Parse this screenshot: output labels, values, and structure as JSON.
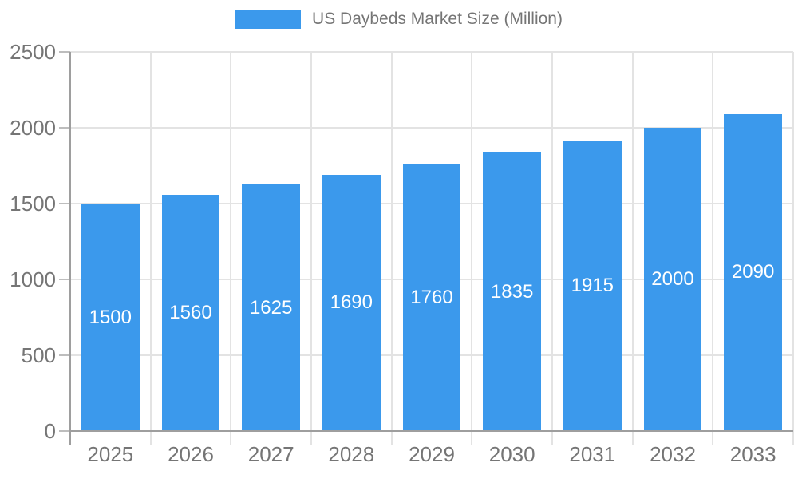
{
  "legend": {
    "label": "US Daybeds Market Size (Million)",
    "swatch_color": "#3b99ec"
  },
  "chart_data": {
    "type": "bar",
    "title": "US Daybeds Market Size (Million)",
    "categories": [
      "2025",
      "2026",
      "2027",
      "2028",
      "2029",
      "2030",
      "2031",
      "2032",
      "2033"
    ],
    "values": [
      1500,
      1560,
      1625,
      1690,
      1760,
      1835,
      1915,
      2000,
      2090
    ],
    "xlabel": "",
    "ylabel": "",
    "ylim": [
      0,
      2500
    ],
    "yticks": [
      0,
      500,
      1000,
      1500,
      2000,
      2500
    ],
    "grid": true,
    "legend_position": "top",
    "bar_color": "#3b99ec",
    "value_label_color": "#ffffff",
    "axis_label_color": "#757575",
    "axis_line_color": "#9e9e9e",
    "gridline_color": "#e3e3e3"
  }
}
